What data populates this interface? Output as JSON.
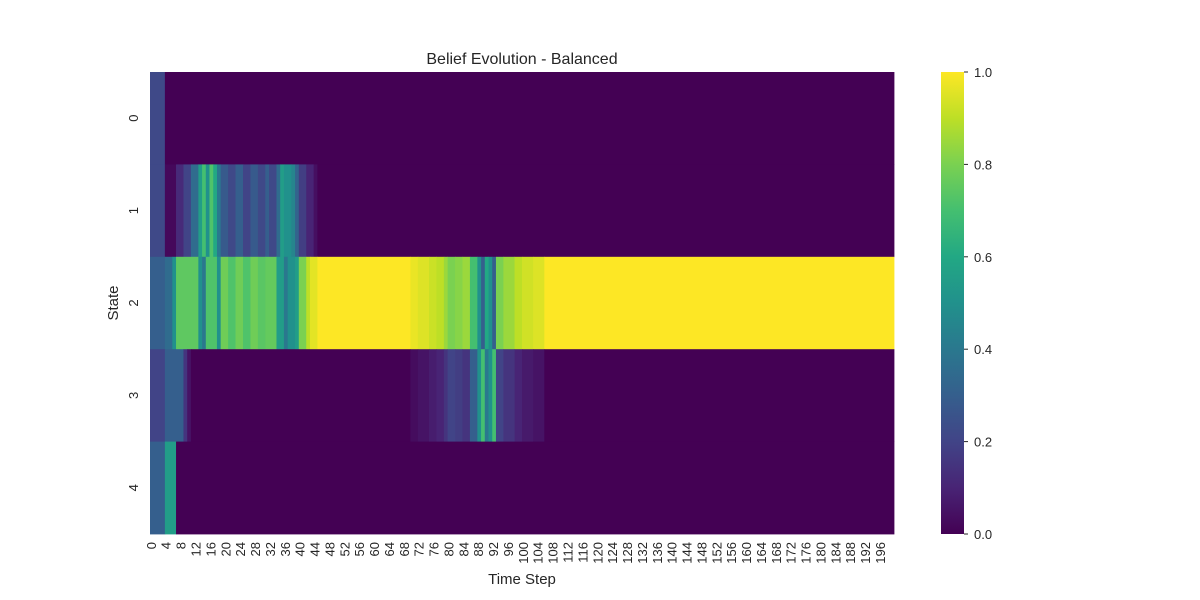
{
  "chart_data": {
    "type": "heatmap",
    "title": "Belief Evolution - Balanced",
    "xlabel": "Time Step",
    "ylabel": "State",
    "x_range": [
      0,
      199
    ],
    "x_tick_step": 4,
    "y_categories": [
      "0",
      "1",
      "2",
      "3",
      "4"
    ],
    "colormap": "viridis",
    "colorbar": {
      "min": 0.0,
      "max": 1.0,
      "ticks": [
        "0.0",
        "0.2",
        "0.4",
        "0.6",
        "0.8",
        "1.0"
      ]
    },
    "grid": false,
    "rows": [
      {
        "state": "0",
        "segments": [
          [
            0,
            3,
            0.22
          ],
          [
            4,
            199,
            0.0
          ]
        ]
      },
      {
        "state": "1",
        "segments": [
          [
            0,
            3,
            0.22
          ],
          [
            4,
            6,
            0.02
          ],
          [
            7,
            8,
            0.12
          ],
          [
            9,
            10,
            0.2
          ],
          [
            11,
            12,
            0.35
          ],
          [
            13,
            13,
            0.55
          ],
          [
            14,
            14,
            0.7
          ],
          [
            15,
            15,
            0.5
          ],
          [
            16,
            16,
            0.72
          ],
          [
            17,
            17,
            0.6
          ],
          [
            18,
            18,
            0.4
          ],
          [
            19,
            20,
            0.28
          ],
          [
            21,
            22,
            0.22
          ],
          [
            23,
            24,
            0.3
          ],
          [
            25,
            26,
            0.2
          ],
          [
            27,
            28,
            0.28
          ],
          [
            29,
            30,
            0.22
          ],
          [
            31,
            31,
            0.3
          ],
          [
            32,
            33,
            0.22
          ],
          [
            34,
            34,
            0.35
          ],
          [
            35,
            35,
            0.55
          ],
          [
            36,
            37,
            0.5
          ],
          [
            38,
            38,
            0.45
          ],
          [
            39,
            39,
            0.32
          ],
          [
            40,
            41,
            0.18
          ],
          [
            42,
            43,
            0.1
          ],
          [
            44,
            44,
            0.04
          ],
          [
            45,
            199,
            0.0
          ]
        ]
      },
      {
        "state": "2",
        "segments": [
          [
            0,
            3,
            0.3
          ],
          [
            4,
            5,
            0.35
          ],
          [
            6,
            6,
            0.5
          ],
          [
            7,
            12,
            0.75
          ],
          [
            13,
            13,
            0.5
          ],
          [
            14,
            14,
            0.4
          ],
          [
            15,
            17,
            0.72
          ],
          [
            18,
            18,
            0.5
          ],
          [
            19,
            20,
            0.78
          ],
          [
            21,
            22,
            0.72
          ],
          [
            23,
            24,
            0.78
          ],
          [
            25,
            26,
            0.72
          ],
          [
            27,
            28,
            0.78
          ],
          [
            29,
            30,
            0.74
          ],
          [
            31,
            33,
            0.76
          ],
          [
            34,
            35,
            0.55
          ],
          [
            36,
            36,
            0.4
          ],
          [
            37,
            38,
            0.5
          ],
          [
            39,
            39,
            0.55
          ],
          [
            40,
            41,
            0.8
          ],
          [
            42,
            42,
            0.9
          ],
          [
            43,
            44,
            0.96
          ],
          [
            45,
            69,
            1.0
          ],
          [
            70,
            71,
            0.97
          ],
          [
            72,
            74,
            0.95
          ],
          [
            75,
            76,
            0.92
          ],
          [
            77,
            78,
            0.9
          ],
          [
            79,
            79,
            0.85
          ],
          [
            80,
            81,
            0.8
          ],
          [
            82,
            83,
            0.82
          ],
          [
            84,
            85,
            0.85
          ],
          [
            86,
            87,
            0.7
          ],
          [
            88,
            88,
            0.5
          ],
          [
            89,
            89,
            0.3
          ],
          [
            90,
            90,
            0.6
          ],
          [
            91,
            91,
            0.5
          ],
          [
            92,
            92,
            0.3
          ],
          [
            93,
            94,
            0.8
          ],
          [
            95,
            97,
            0.85
          ],
          [
            98,
            99,
            0.9
          ],
          [
            100,
            102,
            0.93
          ],
          [
            103,
            105,
            0.95
          ],
          [
            106,
            199,
            1.0
          ]
        ]
      },
      {
        "state": "3",
        "segments": [
          [
            0,
            3,
            0.2
          ],
          [
            4,
            8,
            0.3
          ],
          [
            9,
            9,
            0.15
          ],
          [
            10,
            10,
            0.05
          ],
          [
            11,
            69,
            0.0
          ],
          [
            70,
            71,
            0.03
          ],
          [
            72,
            74,
            0.05
          ],
          [
            75,
            76,
            0.08
          ],
          [
            77,
            78,
            0.1
          ],
          [
            79,
            79,
            0.15
          ],
          [
            80,
            81,
            0.2
          ],
          [
            82,
            83,
            0.18
          ],
          [
            84,
            85,
            0.15
          ],
          [
            86,
            87,
            0.3
          ],
          [
            88,
            88,
            0.5
          ],
          [
            89,
            89,
            0.7
          ],
          [
            90,
            90,
            0.4
          ],
          [
            91,
            91,
            0.5
          ],
          [
            92,
            92,
            0.7
          ],
          [
            93,
            94,
            0.2
          ],
          [
            95,
            97,
            0.15
          ],
          [
            98,
            99,
            0.1
          ],
          [
            100,
            102,
            0.07
          ],
          [
            103,
            105,
            0.05
          ],
          [
            106,
            199,
            0.0
          ]
        ]
      },
      {
        "state": "4",
        "segments": [
          [
            0,
            3,
            0.3
          ],
          [
            4,
            6,
            0.55
          ],
          [
            7,
            199,
            0.0
          ]
        ]
      }
    ]
  }
}
